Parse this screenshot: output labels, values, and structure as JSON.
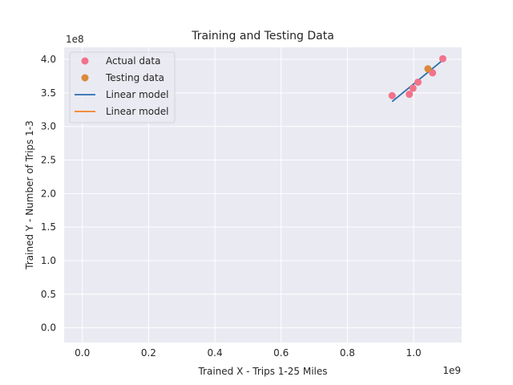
{
  "chart_data": {
    "type": "scatter",
    "title": "Training and Testing Data",
    "xlabel": "Trained X -  Trips 1-25 Miles",
    "ylabel": "Trained Y - Number of Trips 1-3",
    "x_offset_label": "1e9",
    "y_offset_label": "1e8",
    "xlim": [
      -0.055,
      1.145
    ],
    "ylim": [
      -0.22,
      4.18
    ],
    "x_ticks": [
      "0.0",
      "0.2",
      "0.4",
      "0.6",
      "0.8",
      "1.0"
    ],
    "y_ticks": [
      "0.0",
      "0.5",
      "1.0",
      "1.5",
      "2.0",
      "2.5",
      "3.0",
      "3.5",
      "4.0"
    ],
    "background": "#eaeaf2",
    "grid": true,
    "legend_position": "upper-left",
    "series": [
      {
        "name": "Actual data",
        "kind": "scatter",
        "color": "#f0738a",
        "points": [
          [
            0.935,
            3.46
          ],
          [
            0.987,
            3.48
          ],
          [
            0.998,
            3.57
          ],
          [
            1.013,
            3.66
          ],
          [
            1.057,
            3.8
          ],
          [
            1.088,
            4.01
          ]
        ]
      },
      {
        "name": "Testing data",
        "kind": "scatter",
        "color": "#db8a3c",
        "points": [
          [
            1.043,
            3.86
          ]
        ]
      },
      {
        "name": "Linear model",
        "kind": "line",
        "color": "#2a6fad",
        "points": [
          [
            0.935,
            3.37
          ],
          [
            1.088,
            3.99
          ]
        ]
      },
      {
        "name": "Linear model",
        "kind": "line",
        "color": "#f58027",
        "points": [
          [
            1.043,
            3.83
          ],
          [
            1.052,
            3.86
          ]
        ]
      }
    ]
  }
}
